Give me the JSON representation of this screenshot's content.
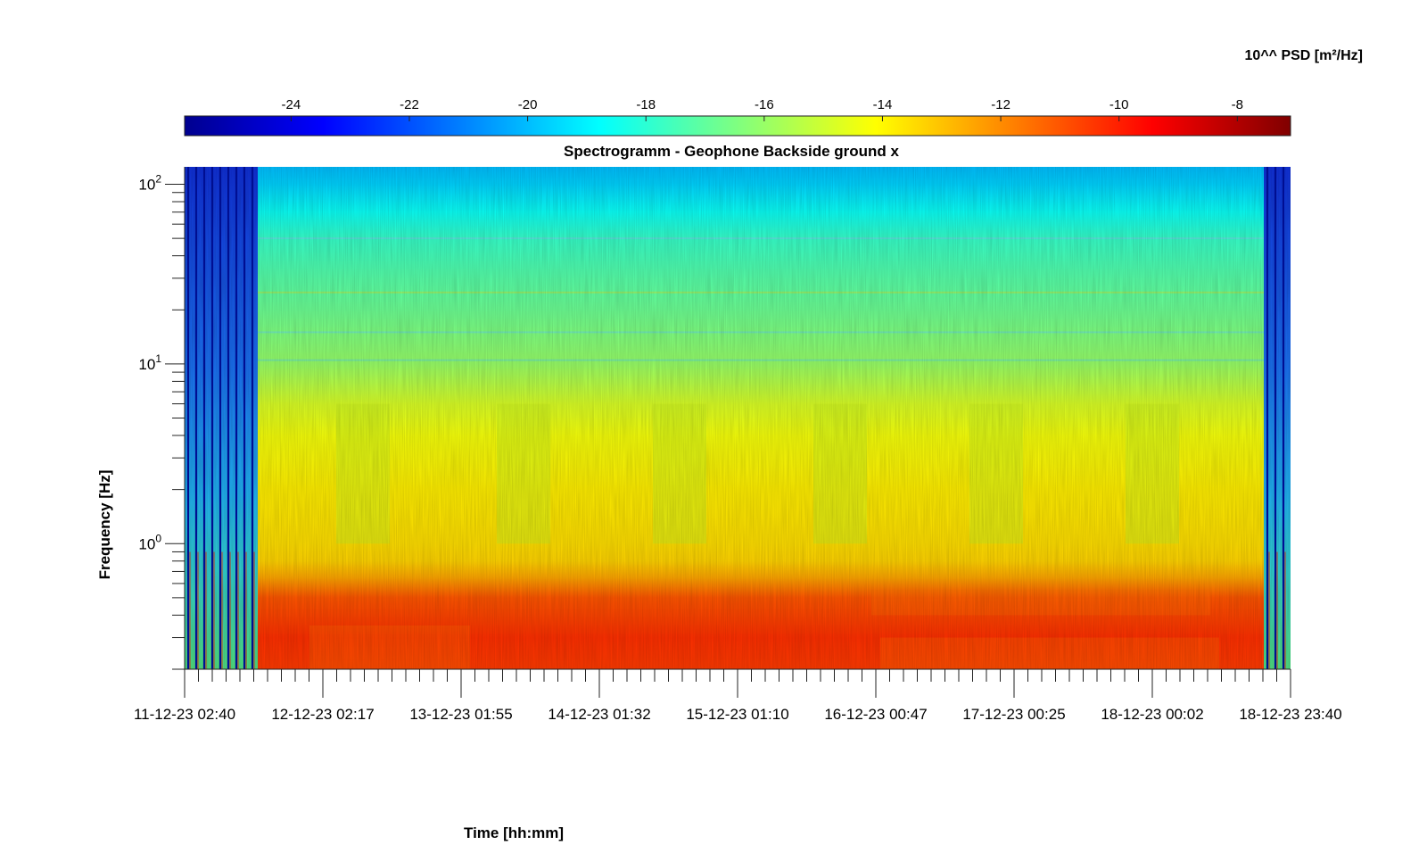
{
  "chart_data": {
    "type": "heatmap",
    "title": "Spectrogramm - Geophone Backside ground x",
    "xlabel": "Time [hh:mm]",
    "ylabel": "Frequency [Hz]",
    "colorbar_label": "10^^ PSD [m²/Hz]",
    "colormap": "jet",
    "colorbar_range": [
      -25.8,
      -7.1
    ],
    "colorbar_ticks": [
      -24,
      -22,
      -20,
      -18,
      -16,
      -14,
      -12,
      -10,
      -8
    ],
    "colorbar_ticklabels": [
      "-24",
      "-22",
      "-20",
      "-18",
      "-16",
      "-14",
      "-12",
      "-10",
      "-8"
    ],
    "colorbar_location": "top",
    "x_start": "11-12-23 02:40",
    "x_end": "18-12-23 23:40",
    "x_ticklabels": [
      "11-12-23 02:40",
      "12-12-23 02:17",
      "13-12-23 01:55",
      "14-12-23 01:32",
      "15-12-23 01:10",
      "16-12-23 00:47",
      "17-12-23 00:25",
      "18-12-23 00:02",
      "18-12-23 23:40"
    ],
    "y_scale": "log",
    "ylim": [
      0.2,
      125
    ],
    "y_ticks": [
      1,
      10,
      100
    ],
    "y_ticklabels": [
      {
        "base": "10",
        "exp": "0"
      },
      {
        "base": "10",
        "exp": "1"
      },
      {
        "base": "10",
        "exp": "2"
      }
    ],
    "grid": false,
    "psd_profile": {
      "frequencies": [
        0.2,
        0.3,
        0.5,
        0.65,
        0.8,
        1,
        2,
        4,
        6,
        10,
        20,
        30,
        50,
        70,
        100,
        125
      ],
      "log10_psd": [
        -10.5,
        -10.3,
        -11.0,
        -12.5,
        -13.3,
        -13.5,
        -13.8,
        -14.3,
        -14.8,
        -16.0,
        -16.8,
        -17.2,
        -17.8,
        -18.6,
        -19.6,
        -20.0
      ]
    },
    "annotations": [
      "horizontal line at ~50 Hz",
      "horizontal line at ~25 Hz",
      "diurnal broadband bursts between 1 Hz and 6 Hz",
      "data gaps at start and end of record"
    ]
  }
}
